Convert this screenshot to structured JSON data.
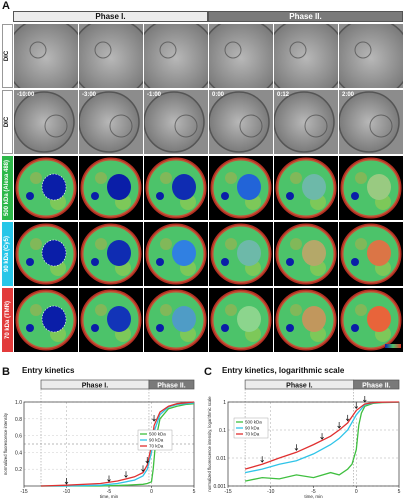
{
  "panels": {
    "a": "A",
    "b": "B",
    "c": "C"
  },
  "top": {
    "phase1": "Phase I.",
    "phase2": "Phase II.",
    "row_labels": [
      "DIC",
      "DIC",
      "500 kDa (Alexa 488)",
      "90 kDa (Cy5)",
      "70 kDa (TMR)"
    ],
    "label_colors": [
      "#ffffff",
      "#ffffff",
      "#2db84a",
      "#27c6e8",
      "#e23b3b"
    ],
    "times": [
      "-10:00",
      "-3:00",
      "-1:00",
      "0:00",
      "0:12",
      "2:00"
    ],
    "fluor_levels": [
      [
        0.0,
        0.0,
        0.05,
        0.25,
        0.55,
        0.7
      ],
      [
        0.0,
        0.05,
        0.35,
        0.55,
        0.8,
        0.95
      ],
      [
        0.0,
        0.08,
        0.45,
        0.65,
        0.85,
        1.0
      ]
    ]
  },
  "chartB": {
    "title": "Entry kinetics"
  },
  "chartC": {
    "title": "Entry kinetics, logarithmic scale"
  },
  "chart_data": [
    {
      "type": "line",
      "title": "Entry kinetics",
      "xlabel": "time, min",
      "ylabel": "normalized fluorescence intensity",
      "xlim": [
        -13,
        5
      ],
      "ylim": [
        0,
        1
      ],
      "xticks": [
        "-15",
        "-10",
        "-5",
        "0",
        "5"
      ],
      "yticks": [
        "0.2",
        "0.4",
        "0.6",
        "0.8",
        "1.0"
      ],
      "phase1": "Phase I.",
      "phase2": "Phase II.",
      "legend_position": "center-right",
      "series": [
        {
          "name": "500 kDa",
          "color": "#3fbf3f",
          "x": [
            -13,
            -10,
            -6,
            -3,
            -1,
            -0.5,
            0,
            0.2,
            0.5,
            1,
            2,
            3,
            4,
            5
          ],
          "y": [
            0,
            0,
            0,
            0.01,
            0.02,
            0.03,
            0.05,
            0.2,
            0.55,
            0.8,
            0.92,
            0.95,
            0.97,
            0.98
          ]
        },
        {
          "name": "90 kDa",
          "color": "#2fc4e8",
          "x": [
            -13,
            -10,
            -6,
            -4,
            -2,
            -1,
            -0.5,
            0,
            0.3,
            1,
            2,
            3,
            4,
            5
          ],
          "y": [
            0,
            0,
            0.01,
            0.03,
            0.07,
            0.12,
            0.2,
            0.4,
            0.65,
            0.85,
            0.94,
            0.97,
            0.98,
            0.99
          ]
        },
        {
          "name": "70 kDa",
          "color": "#e03030",
          "x": [
            -13,
            -10,
            -6,
            -4,
            -2,
            -1,
            -0.5,
            0,
            0.3,
            1,
            2,
            3,
            4,
            5
          ],
          "y": [
            0,
            0.01,
            0.03,
            0.06,
            0.11,
            0.16,
            0.25,
            0.48,
            0.72,
            0.88,
            0.95,
            0.98,
            0.99,
            1.0
          ]
        }
      ]
    },
    {
      "type": "line",
      "title": "Entry kinetics, logarithmic scale",
      "xlabel": "time, min",
      "ylabel": "normalized fluorescence intensity, logarithmic scale",
      "xlim": [
        -13,
        5
      ],
      "ylim": [
        0.001,
        1
      ],
      "log_y": true,
      "xticks": [
        "-15",
        "-10",
        "-5",
        "0",
        "5"
      ],
      "yticks": [
        "0.001",
        "0.01",
        "0.1",
        "1"
      ],
      "phase1": "Phase I.",
      "phase2": "Phase II.",
      "legend_position": "top-left",
      "series": [
        {
          "name": "500 kDa",
          "color": "#3fbf3f",
          "x": [
            -13,
            -11,
            -9,
            -7,
            -5,
            -3,
            -2,
            -1,
            -0.5,
            0,
            0.3,
            0.6,
            1,
            2,
            3,
            5
          ],
          "y": [
            0.0015,
            0.002,
            0.0018,
            0.0025,
            0.002,
            0.003,
            0.0025,
            0.004,
            0.006,
            0.02,
            0.15,
            0.4,
            0.7,
            0.9,
            0.95,
            0.98
          ]
        },
        {
          "name": "90 kDa",
          "color": "#2fc4e8",
          "x": [
            -13,
            -11,
            -9,
            -7,
            -5,
            -3,
            -2,
            -1,
            0,
            1,
            2,
            3,
            5
          ],
          "y": [
            0.003,
            0.004,
            0.006,
            0.008,
            0.014,
            0.03,
            0.05,
            0.1,
            0.35,
            0.8,
            0.93,
            0.97,
            0.99
          ]
        },
        {
          "name": "70 kDa",
          "color": "#e03030",
          "x": [
            -13,
            -11,
            -9,
            -7,
            -5,
            -3,
            -2,
            -1,
            0,
            1,
            2,
            3,
            5
          ],
          "y": [
            0.004,
            0.006,
            0.01,
            0.016,
            0.03,
            0.06,
            0.1,
            0.18,
            0.5,
            0.85,
            0.95,
            0.98,
            1.0
          ]
        }
      ]
    }
  ]
}
